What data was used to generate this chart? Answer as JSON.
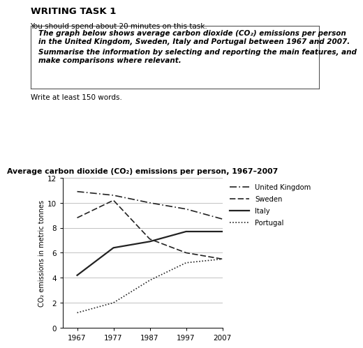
{
  "title": "Average carbon dioxide (CO₂) emissions per person, 1967–2007",
  "header1": "WRITING TASK 1",
  "header2": "You should spend about 20 minutes on this task.",
  "box_line1": "The graph below shows average carbon dioxide (CO₂) emissions per person",
  "box_line2": "in the United Kingdom, Sweden, Italy and Portugal between 1967 and 2007.",
  "box_line3": "Summarise the information by selecting and reporting the main features, and",
  "box_line4": "make comparisons where relevant.",
  "footer": "Write at least 150 words.",
  "years": [
    1967,
    1977,
    1987,
    1997,
    2007
  ],
  "uk": [
    10.9,
    10.6,
    10.0,
    9.5,
    8.7
  ],
  "sweden": [
    8.8,
    10.2,
    7.1,
    6.0,
    5.5
  ],
  "italy": [
    4.2,
    6.4,
    6.9,
    7.7,
    7.7
  ],
  "portugal": [
    1.2,
    2.0,
    3.8,
    5.2,
    5.5
  ],
  "ylabel": "CO₂ emissions in metric tonnes",
  "ylim": [
    0,
    12
  ],
  "yticks": [
    0,
    2,
    4,
    6,
    8,
    10,
    12
  ],
  "bg_color": "#ffffff",
  "line_color": "#222222",
  "legend_labels": [
    "United Kingdom",
    "Sweden",
    "Italy",
    "Portugal"
  ]
}
